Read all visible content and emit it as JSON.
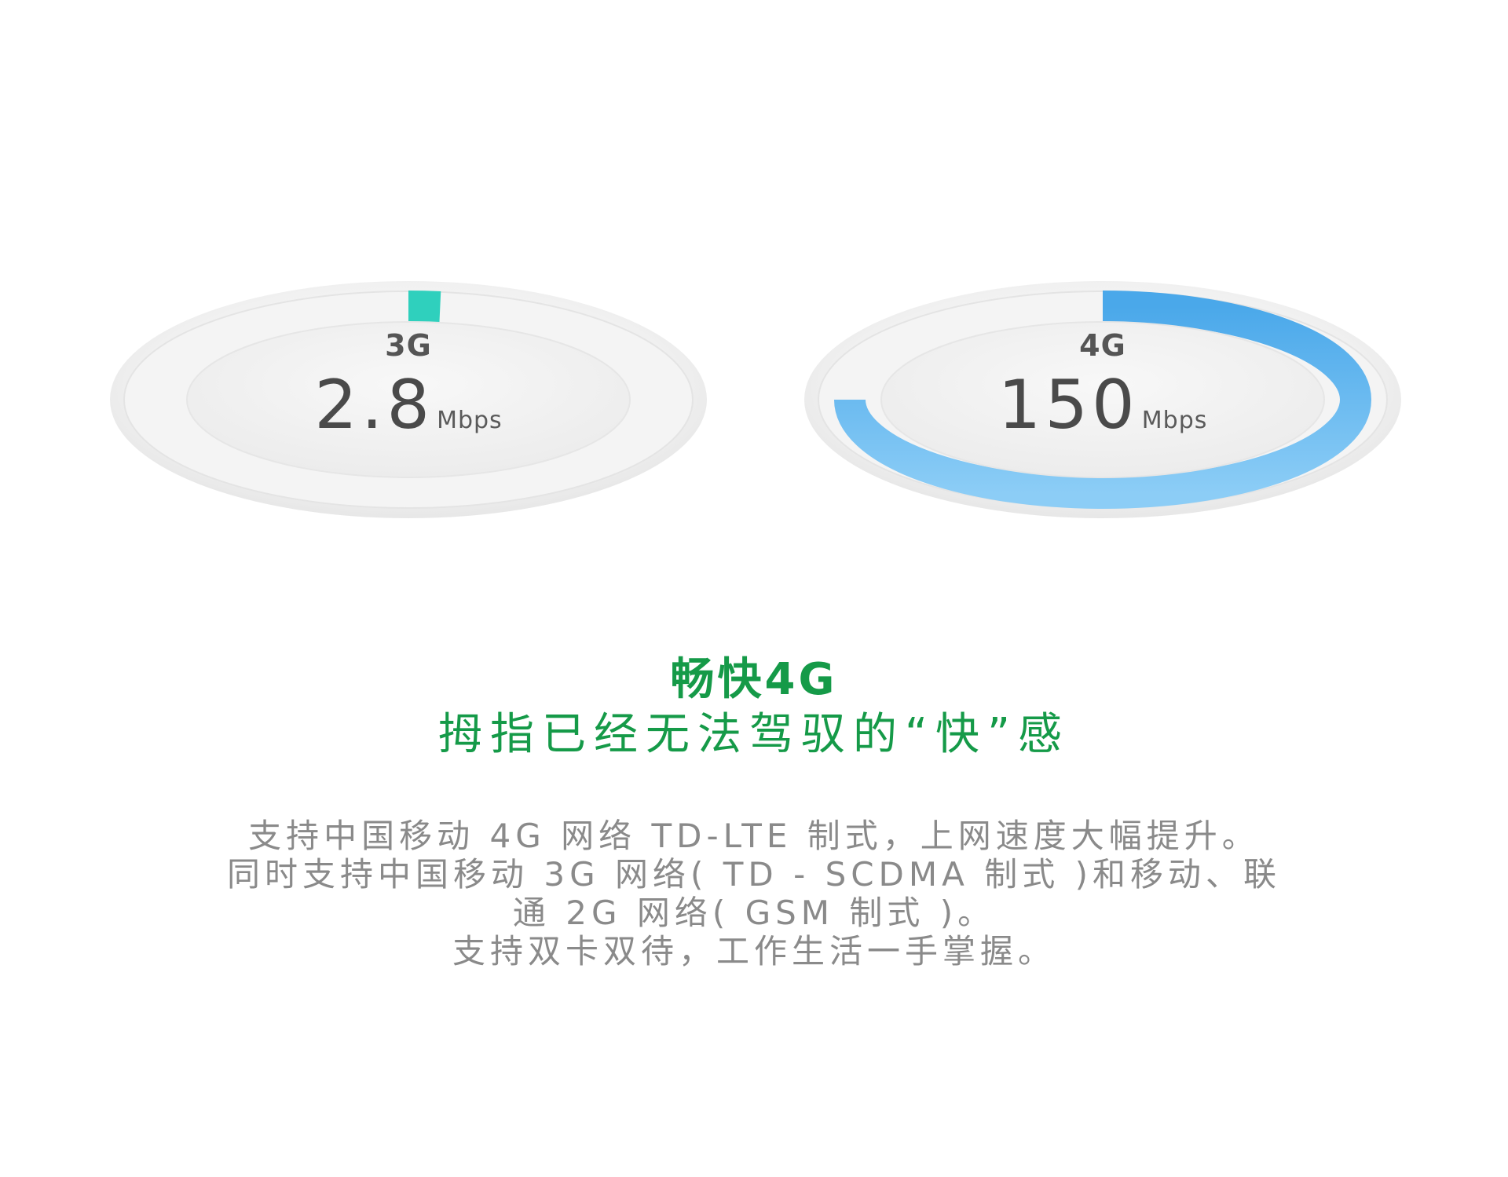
{
  "gauges": [
    {
      "network": "3G",
      "speed": "2.8",
      "unit": "Mbps",
      "fill_fraction": 0.02,
      "color_start": "#2fd0bd",
      "color_end": "#2fd0bd"
    },
    {
      "network": "4G",
      "speed": "150",
      "unit": "Mbps",
      "fill_fraction": 0.75,
      "color_start": "#4aa8ea",
      "color_end": "#8ccdf6"
    }
  ],
  "headline": "畅快4G",
  "subheadline": "拇指已经无法驾驭的“快”感",
  "description": {
    "lines": [
      "支持中国移动 4G 网络 TD-LTE 制式，上网速度大幅提升。",
      "同时支持中国移动 3G 网络( TD - SCDMA 制式 )和移动、联通 2G 网络( GSM 制式 )。",
      "支持双卡双待，工作生活一手掌握。"
    ]
  },
  "colors": {
    "accent_green": "#159a48",
    "body_text": "#8a8a8a",
    "gauge_text": "#4a4a4a",
    "gauge_track": "#ececec",
    "gauge_center": "#f3f3f3"
  }
}
